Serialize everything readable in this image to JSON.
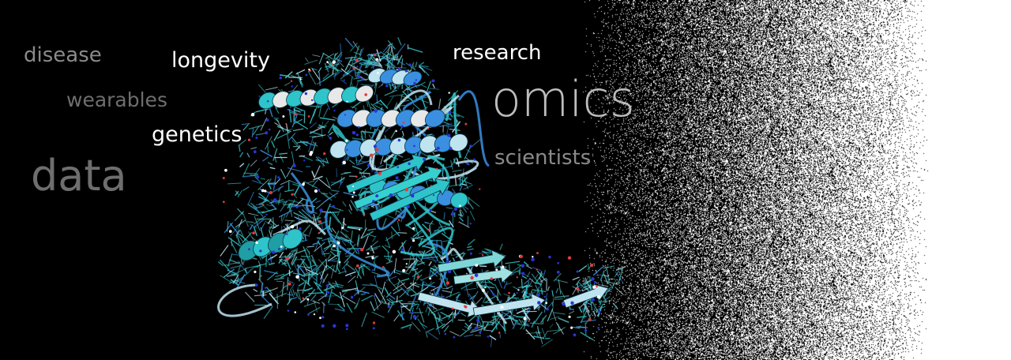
{
  "words": {
    "disease": "disease",
    "longevity": "longevity",
    "research": "research",
    "wearables": "wearables",
    "omics": "omics",
    "genetics": "genetics",
    "scientists": "scientists",
    "data": "data"
  },
  "colors": {
    "background": "#000000",
    "noise_white": "#ffffff",
    "helix_cyan": "#2ec4c9",
    "helix_blue": "#3a8fe0",
    "helix_light": "#bfe4f0",
    "helix_white": "#e8e8e8",
    "atom_red": "#e23b3b",
    "atom_blue": "#2a36d8"
  },
  "graphics": {
    "protein": "protein-ribbon-structure",
    "background": "black-to-white-stipple-gradient"
  }
}
